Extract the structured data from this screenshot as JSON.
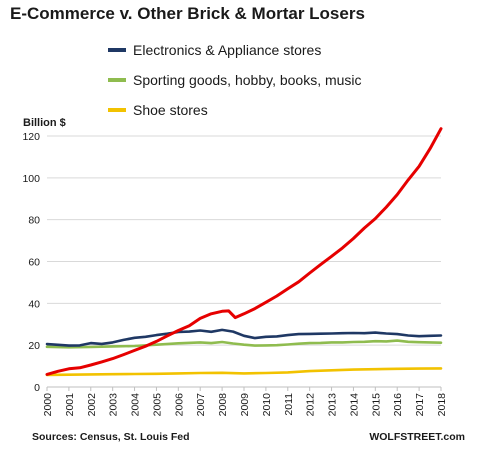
{
  "chart_data": {
    "type": "line",
    "title": "E-Commerce v. Other Brick & Mortar Losers",
    "y_unit_label": "Billion $",
    "xlabel": "",
    "ylabel": "",
    "ylim": [
      0,
      120
    ],
    "xlim": [
      2000,
      2018
    ],
    "y_ticks": [
      0,
      20,
      40,
      60,
      80,
      100,
      120
    ],
    "x_ticks": [
      2000,
      2001,
      2002,
      2003,
      2004,
      2005,
      2006,
      2007,
      2008,
      2009,
      2010,
      2011,
      2012,
      2013,
      2014,
      2015,
      2016,
      2017,
      2018
    ],
    "grid": "horizontal",
    "legend_position": "top",
    "source": "Sources: Census, St. Louis Fed",
    "brand": "WOLFSTREET.com",
    "series": [
      {
        "name": "Electronics & Appliance stores",
        "color": "#1f3864",
        "legend": true,
        "x": [
          2000,
          2001,
          2001.5,
          2002,
          2002.5,
          2003,
          2003.5,
          2004,
          2004.5,
          2005,
          2005.5,
          2006,
          2006.5,
          2007,
          2007.5,
          2008,
          2008.5,
          2009,
          2009.5,
          2010,
          2010.5,
          2011,
          2011.5,
          2012,
          2012.5,
          2013,
          2013.5,
          2014,
          2014.5,
          2015,
          2015.5,
          2016,
          2016.5,
          2017,
          2017.5,
          2018
        ],
        "values": [
          20.5,
          19.8,
          19.9,
          21,
          20.6,
          21.3,
          22.5,
          23.5,
          24,
          24.8,
          25.5,
          26.3,
          26.5,
          27,
          26.4,
          27.3,
          26.5,
          24.5,
          23.4,
          24,
          24.2,
          24.8,
          25.3,
          25.4,
          25.5,
          25.6,
          25.7,
          25.8,
          25.7,
          26,
          25.6,
          25.3,
          24.6,
          24.3,
          24.5,
          24.6
        ]
      },
      {
        "name": "Sporting goods, hobby, books, music",
        "color": "#8fbc4f",
        "legend": true,
        "x": [
          2000,
          2001,
          2002,
          2003,
          2004,
          2005,
          2006,
          2007,
          2007.5,
          2008,
          2008.5,
          2009,
          2009.5,
          2010,
          2010.5,
          2011,
          2011.5,
          2012,
          2012.5,
          2013,
          2013.5,
          2014,
          2014.5,
          2015,
          2015.5,
          2016,
          2016.5,
          2017,
          2017.5,
          2018
        ],
        "values": [
          19.2,
          19.0,
          19.1,
          19.4,
          19.6,
          20.2,
          20.9,
          21.3,
          21.0,
          21.5,
          20.8,
          20.2,
          19.8,
          19.9,
          20.0,
          20.3,
          20.7,
          21.0,
          21.1,
          21.3,
          21.3,
          21.5,
          21.6,
          21.9,
          21.8,
          22.2,
          21.6,
          21.4,
          21.3,
          21.2
        ]
      },
      {
        "name": "Shoe stores",
        "color": "#f2c200",
        "legend": true,
        "x": [
          2000,
          2001,
          2002,
          2003,
          2004,
          2005,
          2006,
          2007,
          2008,
          2009,
          2010,
          2011,
          2012,
          2013,
          2014,
          2015,
          2016,
          2017,
          2018
        ],
        "values": [
          5.8,
          5.9,
          6.0,
          6.1,
          6.2,
          6.3,
          6.5,
          6.7,
          6.8,
          6.5,
          6.7,
          7.0,
          7.6,
          8.0,
          8.3,
          8.5,
          8.7,
          8.8,
          8.9
        ]
      },
      {
        "name": "",
        "color": "#e60000",
        "legend": false,
        "x": [
          2000,
          2000.5,
          2001,
          2001.5,
          2002,
          2002.5,
          2003,
          2003.5,
          2004,
          2004.5,
          2005,
          2005.5,
          2006,
          2006.5,
          2007,
          2007.5,
          2008,
          2008.3,
          2008.6,
          2009,
          2009.5,
          2010,
          2010.5,
          2011,
          2011.5,
          2012,
          2012.5,
          2013,
          2013.5,
          2014,
          2014.5,
          2015,
          2015.5,
          2016,
          2016.5,
          2017,
          2017.5,
          2018
        ],
        "values": [
          6,
          7.5,
          8.7,
          9.2,
          10.5,
          12,
          13.6,
          15.5,
          17.5,
          19.5,
          21.8,
          24.5,
          27,
          29.3,
          32.8,
          35,
          36.2,
          36.4,
          33.2,
          35,
          37.5,
          40.5,
          43.5,
          47,
          50.3,
          54.5,
          58.5,
          62.5,
          66.5,
          71,
          76,
          80.5,
          86,
          92,
          99,
          105.5,
          114,
          123.5
        ]
      }
    ]
  }
}
